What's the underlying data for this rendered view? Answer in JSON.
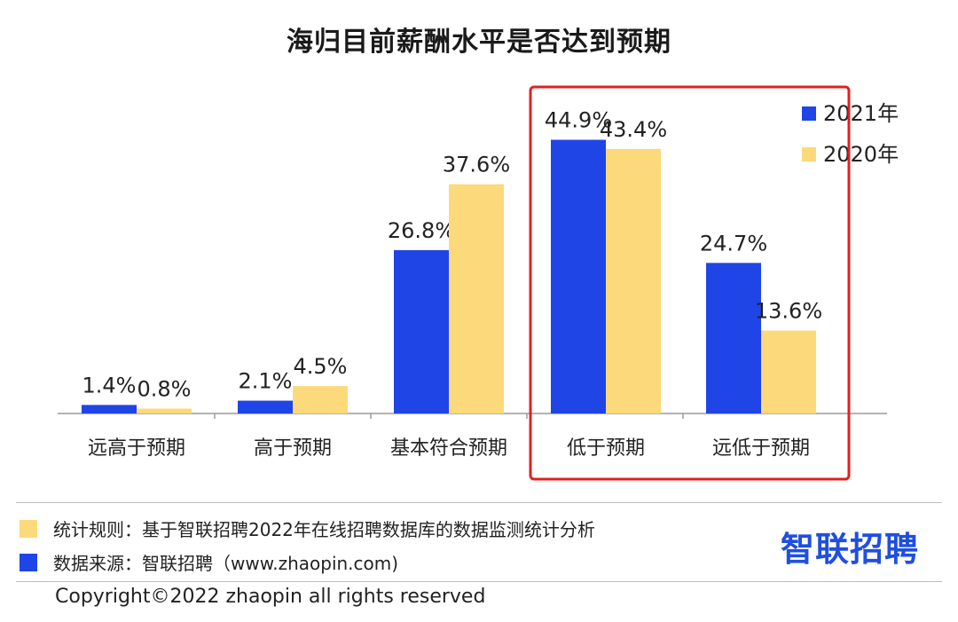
{
  "chart_data": {
    "type": "bar",
    "title": "海归目前薪酬水平是否达到预期",
    "categories": [
      "远高于预期",
      "高于预期",
      "基本符合预期",
      "低于预期",
      "远低于预期"
    ],
    "series": [
      {
        "name": "2021年",
        "values": [
          1.4,
          2.1,
          26.8,
          44.9,
          24.7
        ],
        "labels": [
          "1.4%",
          "2.1%",
          "26.8%",
          "44.9%",
          "24.7%"
        ],
        "color": "#1f45e6"
      },
      {
        "name": "2020年",
        "values": [
          0.8,
          4.5,
          37.6,
          43.4,
          13.6
        ],
        "labels": [
          "0.8%",
          "4.5%",
          "37.6%",
          "43.4%",
          "13.6%"
        ],
        "color": "#fcd97a"
      }
    ],
    "ylim": [
      0,
      50
    ],
    "grid": false,
    "legend_position": "top-right",
    "highlight_color": "#e02020"
  },
  "notes": [
    {
      "text": "统计规则：基于智联招聘2022年在线招聘数据库的数据监测统计分析",
      "color": "#fcd97a"
    },
    {
      "text": "数据来源：智联招聘（www.zhaopin.com)",
      "color": "#1f45e6"
    }
  ],
  "brand": "智联招聘",
  "copyright": "Copyright©2022 zhaopin all rights reserved"
}
